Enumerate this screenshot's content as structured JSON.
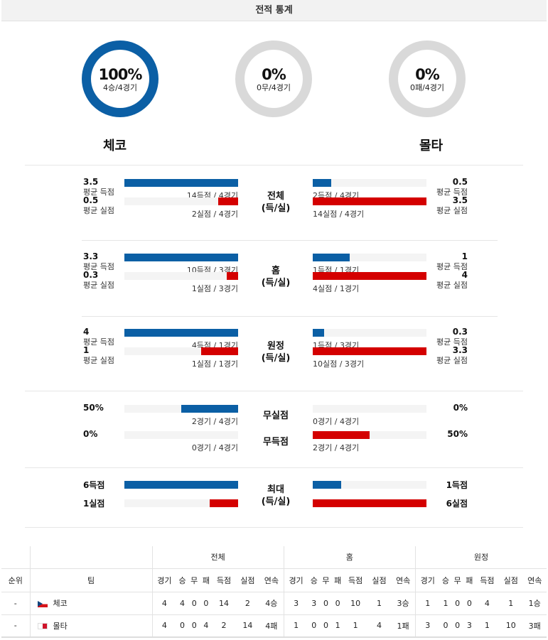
{
  "header": {
    "title": "전적 통계"
  },
  "colors": {
    "home": "#0b5fa5",
    "away": "#d40000",
    "donut_empty": "#d9d9d9"
  },
  "donuts": [
    {
      "pct": "100%",
      "sub": "4승/4경기",
      "fraction": 1.0,
      "color": "#0b5fa5"
    },
    {
      "pct": "0%",
      "sub": "0무/4경기",
      "fraction": 0.0,
      "color": "#d9d9d9"
    },
    {
      "pct": "0%",
      "sub": "0패/4경기",
      "fraction": 0.0,
      "color": "#d9d9d9"
    }
  ],
  "teams": {
    "home": "체코",
    "away": "몰타"
  },
  "sections": [
    {
      "mid": [
        "전체",
        "(득/실)"
      ],
      "rows": [
        {
          "left": {
            "value": "3.5",
            "label": "평균 득점",
            "note": "14득점 / 4경기",
            "fraction": 1.0,
            "color": "blue"
          },
          "right": {
            "value": "0.5",
            "label": "평균 득점",
            "note": "2득점 / 4경기",
            "fraction": 0.1625,
            "color": "blue"
          }
        },
        {
          "left": {
            "value": "0.5",
            "label": "평균 실점",
            "note": "2실점 / 4경기",
            "fraction": 0.175,
            "color": "red"
          },
          "right": {
            "value": "3.5",
            "label": "평균 실점",
            "note": "14실점 / 4경기",
            "fraction": 1.0,
            "color": "red"
          }
        }
      ]
    },
    {
      "mid": [
        "홈",
        "(득/실)"
      ],
      "rows": [
        {
          "left": {
            "value": "3.3",
            "label": "평균 득점",
            "note": "10득점 / 3경기",
            "fraction": 1.0,
            "color": "blue"
          },
          "right": {
            "value": "1",
            "label": "평균 득점",
            "note": "1득점 / 1경기",
            "fraction": 0.325,
            "color": "blue"
          }
        },
        {
          "left": {
            "value": "0.3",
            "label": "평균 실점",
            "note": "1실점 / 3경기",
            "fraction": 0.1,
            "color": "red"
          },
          "right": {
            "value": "4",
            "label": "평균 실점",
            "note": "4실점 / 1경기",
            "fraction": 1.0,
            "color": "red"
          }
        }
      ]
    },
    {
      "mid": [
        "원정",
        "(득/실)"
      ],
      "rows": [
        {
          "left": {
            "value": "4",
            "label": "평균 득점",
            "note": "4득점 / 1경기",
            "fraction": 1.0,
            "color": "blue"
          },
          "right": {
            "value": "0.3",
            "label": "평균 득점",
            "note": "1득점 / 3경기",
            "fraction": 0.1,
            "color": "blue"
          }
        },
        {
          "left": {
            "value": "1",
            "label": "평균 실점",
            "note": "1실점 / 1경기",
            "fraction": 0.325,
            "color": "red"
          },
          "right": {
            "value": "3.3",
            "label": "평균 실점",
            "note": "10실점 / 3경기",
            "fraction": 1.0,
            "color": "red"
          }
        }
      ]
    },
    {
      "mid": [
        "무실점",
        "무득점"
      ],
      "rows": [
        {
          "left": {
            "value": "50%",
            "label": "",
            "note": "2경기 / 4경기",
            "fraction": 0.5,
            "color": "blue"
          },
          "right": {
            "value": "0%",
            "label": "",
            "note": "0경기 / 4경기",
            "fraction": 0.0,
            "color": "blue"
          }
        },
        {
          "left": {
            "value": "0%",
            "label": "",
            "note": "0경기 / 4경기",
            "fraction": 0.0,
            "color": "red"
          },
          "right": {
            "value": "50%",
            "label": "",
            "note": "2경기 / 4경기",
            "fraction": 0.5,
            "color": "red"
          }
        }
      ]
    },
    {
      "mid": [
        "최대",
        "(득/실)"
      ],
      "rows": [
        {
          "left": {
            "value": "6득점",
            "label": "",
            "note": "",
            "fraction": 1.0,
            "color": "blue"
          },
          "right": {
            "value": "1득점",
            "label": "",
            "note": "",
            "fraction": 0.25,
            "color": "blue"
          }
        },
        {
          "left": {
            "value": "1실점",
            "label": "",
            "note": "",
            "fraction": 0.25,
            "color": "red"
          },
          "right": {
            "value": "6실점",
            "label": "",
            "note": "",
            "fraction": 1.0,
            "color": "red"
          }
        }
      ]
    }
  ],
  "standings": {
    "groups": [
      "전체",
      "홈",
      "원정"
    ],
    "headers": [
      "순위",
      "팀",
      "경기",
      "승",
      "무",
      "패",
      "득점",
      "실점",
      "연속",
      "경기",
      "승",
      "무",
      "패",
      "득점",
      "실점",
      "연속",
      "경기",
      "승",
      "무",
      "패",
      "득점",
      "실점",
      "연속"
    ],
    "rows": [
      {
        "rank": "-",
        "flag": "cz",
        "team": "체코",
        "cells": [
          "4",
          "4",
          "0",
          "0",
          "14",
          "2",
          "4승",
          "3",
          "3",
          "0",
          "0",
          "10",
          "1",
          "3승",
          "1",
          "1",
          "0",
          "0",
          "4",
          "1",
          "1승"
        ]
      },
      {
        "rank": "-",
        "flag": "mt",
        "team": "몰타",
        "cells": [
          "4",
          "0",
          "0",
          "4",
          "2",
          "14",
          "4패",
          "1",
          "0",
          "0",
          "1",
          "1",
          "4",
          "1패",
          "3",
          "0",
          "0",
          "3",
          "1",
          "10",
          "3패"
        ]
      }
    ]
  }
}
